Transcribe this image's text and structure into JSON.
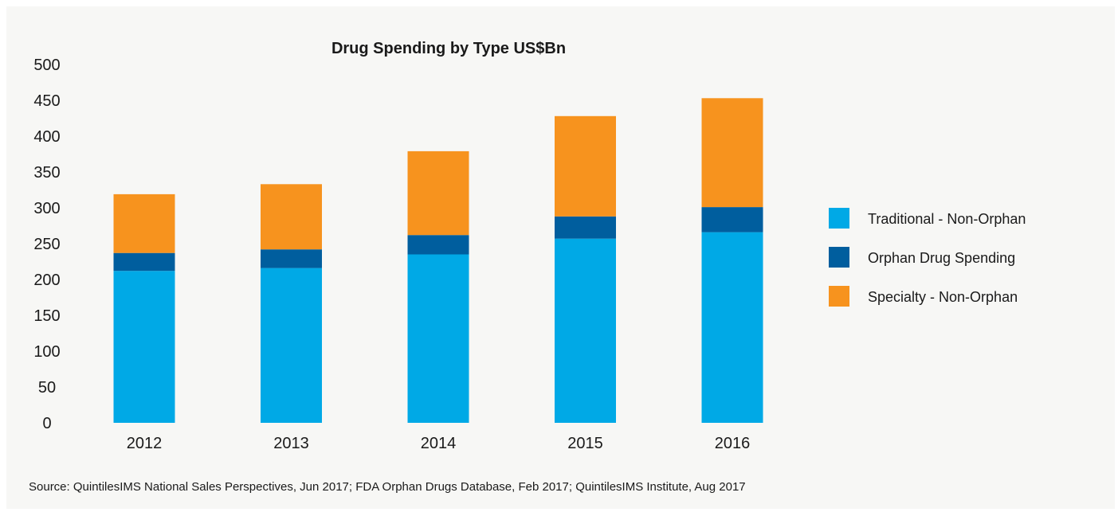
{
  "chart_data": {
    "type": "bar",
    "stacked": true,
    "title": "Drug Spending by Type US$Bn",
    "xlabel": "",
    "ylabel": "",
    "categories": [
      "2012",
      "2013",
      "2014",
      "2015",
      "2016"
    ],
    "ylim": [
      0,
      500
    ],
    "yticks": [
      0,
      50,
      100,
      150,
      200,
      250,
      300,
      350,
      400,
      450,
      500
    ],
    "grid": false,
    "legend_position": "right",
    "series": [
      {
        "name": "Traditional - Non-Orphan",
        "color": "#00a9e6",
        "values": [
          212,
          216,
          235,
          257,
          266
        ]
      },
      {
        "name": "Orphan Drug Spending",
        "color": "#005e9e",
        "values": [
          25,
          26,
          27,
          31,
          35
        ]
      },
      {
        "name": "Specialty - Non-Orphan",
        "color": "#f7931e",
        "values": [
          82,
          91,
          117,
          140,
          152
        ]
      }
    ],
    "source": "Source: QuintilesIMS National Sales Perspectives, Jun 2017; FDA Orphan Drugs Database, Feb 2017; QuintilesIMS Institute, Aug 2017"
  }
}
